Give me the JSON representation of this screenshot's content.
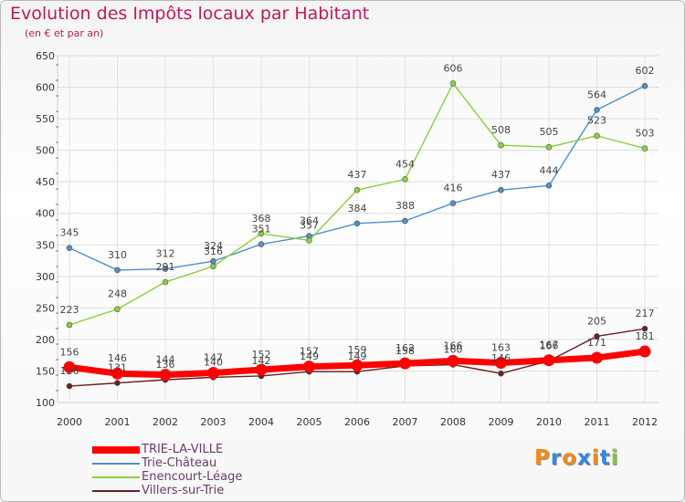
{
  "chart_data": {
    "type": "line",
    "title": "Evolution des Impôts locaux par Habitant",
    "subtitle": "(en € et par an)",
    "xlabel": "",
    "ylabel": "",
    "ylim": [
      100,
      650
    ],
    "yticks": [
      100,
      150,
      200,
      250,
      300,
      350,
      400,
      450,
      500,
      550,
      600,
      650
    ],
    "grid": true,
    "legend_position": "bottom-left",
    "x": [
      2000,
      2001,
      2002,
      2003,
      2004,
      2005,
      2006,
      2007,
      2008,
      2009,
      2010,
      2011,
      2012
    ],
    "series": [
      {
        "name": "TRIE-LA-VILLE",
        "color": "#ff0000",
        "values": [
          156,
          146,
          144,
          147,
          152,
          157,
          159,
          162,
          166,
          163,
          167,
          171,
          181
        ]
      },
      {
        "name": "Trie-Château",
        "color": "#4f8fc7",
        "values": [
          345,
          310,
          312,
          324,
          351,
          364,
          384,
          388,
          416,
          437,
          444,
          564,
          602
        ]
      },
      {
        "name": "Enencourt-Léage",
        "color": "#88d13b",
        "values": [
          223,
          248,
          291,
          316,
          368,
          357,
          437,
          454,
          606,
          508,
          505,
          523,
          503
        ]
      },
      {
        "name": "Villers-sur-Trie",
        "color": "#6b1f1f",
        "values": [
          126,
          131,
          136,
          140,
          142,
          149,
          149,
          158,
          160,
          146,
          166,
          205,
          217
        ]
      }
    ]
  },
  "logo": {
    "text": "Proxiti",
    "letter_colors": [
      "#f08a1c",
      "#3a87d6",
      "#f08a1c",
      "#3a87d6",
      "#f08a1c",
      "#3a87d6",
      "#8bc43f"
    ]
  }
}
